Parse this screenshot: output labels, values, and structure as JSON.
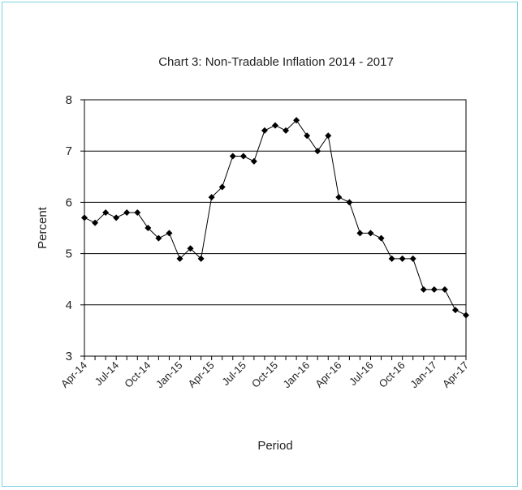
{
  "chart_data": {
    "type": "line",
    "title": "Chart 3: Non-Tradable  Inflation  2014 - 2017",
    "xlabel": "Period",
    "ylabel": "Percent",
    "ylim": [
      3,
      8
    ],
    "yticks": [
      "3",
      "4",
      "5",
      "6",
      "7",
      "8"
    ],
    "xtick_labels": [
      "Apr-14",
      "Jul-14",
      "Oct-14",
      "Jan-15",
      "Apr-15",
      "Jul-15",
      "Oct-15",
      "Jan-16",
      "Apr-16",
      "Jul-16",
      "Oct-16",
      "Jan-17",
      "Apr-17"
    ],
    "grid": "horizontal",
    "legend": "none",
    "x": [
      "Apr-14",
      "May-14",
      "Jun-14",
      "Jul-14",
      "Aug-14",
      "Sep-14",
      "Oct-14",
      "Nov-14",
      "Dec-14",
      "Jan-15",
      "Feb-15",
      "Mar-15",
      "Apr-15",
      "May-15",
      "Jun-15",
      "Jul-15",
      "Aug-15",
      "Sep-15",
      "Oct-15",
      "Nov-15",
      "Dec-15",
      "Jan-16",
      "Feb-16",
      "Mar-16",
      "Apr-16",
      "May-16",
      "Jun-16",
      "Jul-16",
      "Aug-16",
      "Sep-16",
      "Oct-16",
      "Nov-16",
      "Dec-16",
      "Jan-17",
      "Feb-17",
      "Mar-17",
      "Apr-17"
    ],
    "series": [
      {
        "values": [
          5.7,
          5.6,
          5.8,
          5.7,
          5.8,
          5.8,
          5.5,
          5.3,
          5.4,
          4.9,
          5.1,
          4.9,
          6.1,
          6.3,
          6.9,
          6.9,
          6.8,
          7.4,
          7.5,
          7.4,
          7.6,
          7.3,
          7.0,
          7.3,
          6.1,
          6.0,
          5.4,
          5.4,
          5.3,
          4.9,
          4.9,
          4.9,
          4.3,
          4.3,
          4.3,
          3.9,
          3.8
        ],
        "color": "#000000"
      }
    ]
  }
}
